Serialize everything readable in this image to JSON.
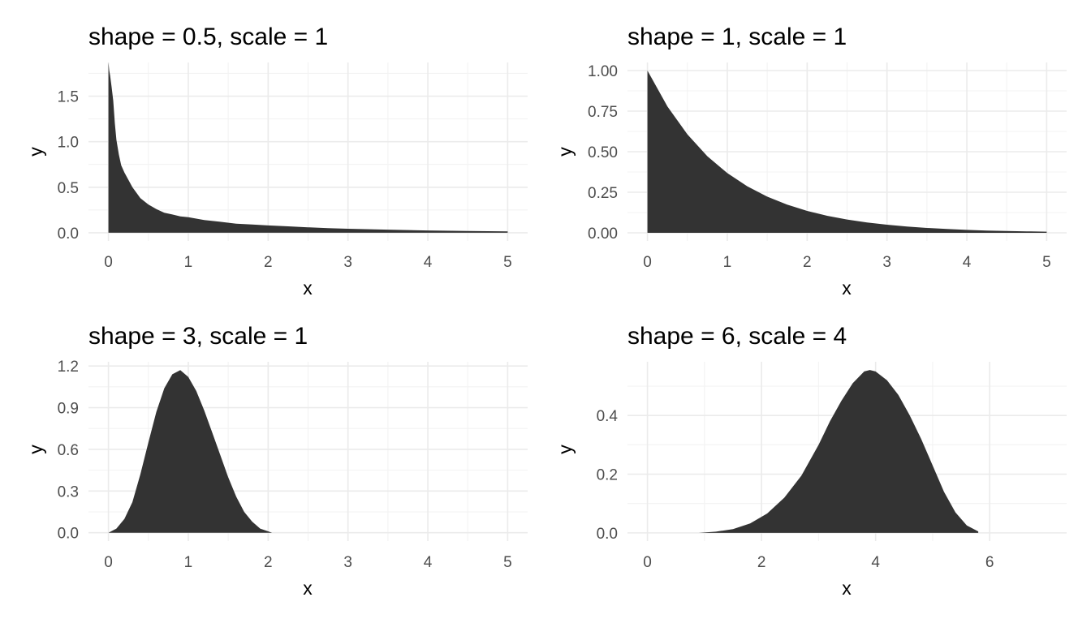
{
  "chart_data": [
    {
      "type": "area",
      "title": "shape = 0.5, scale = 1",
      "xlabel": "x",
      "ylabel": "y",
      "grid": true,
      "fill_color": "#333333",
      "xlim": [
        -0.25,
        5.25
      ],
      "ylim": [
        -0.09,
        1.87
      ],
      "xticks": [
        0,
        1,
        2,
        3,
        4,
        5
      ],
      "xtick_labels": [
        "0",
        "1",
        "2",
        "3",
        "4",
        "5"
      ],
      "yticks": [
        0.0,
        0.5,
        1.0,
        1.5
      ],
      "ytick_labels": [
        "0.0",
        "0.5",
        "1.0",
        "1.5"
      ],
      "x": [
        0,
        0.01,
        0.02,
        0.04,
        0.06,
        0.08,
        0.1,
        0.13,
        0.16,
        0.2,
        0.25,
        0.3,
        0.35,
        0.4,
        0.5,
        0.6,
        0.7,
        0.8,
        0.9,
        1.0,
        1.2,
        1.4,
        1.6,
        1.8,
        2.0,
        2.25,
        2.5,
        2.75,
        3.0,
        3.5,
        4.0,
        4.5,
        5.0
      ],
      "y": [
        1.87,
        1.78,
        1.73,
        1.6,
        1.45,
        1.2,
        1.02,
        0.86,
        0.74,
        0.66,
        0.58,
        0.5,
        0.44,
        0.38,
        0.31,
        0.26,
        0.22,
        0.2,
        0.18,
        0.17,
        0.14,
        0.12,
        0.1,
        0.09,
        0.08,
        0.07,
        0.06,
        0.05,
        0.044,
        0.034,
        0.025,
        0.019,
        0.014
      ]
    },
    {
      "type": "area",
      "title": "shape = 1, scale = 1",
      "xlabel": "x",
      "ylabel": "y",
      "grid": true,
      "fill_color": "#333333",
      "xlim": [
        -0.25,
        5.25
      ],
      "ylim": [
        -0.05,
        1.05
      ],
      "xticks": [
        0,
        1,
        2,
        3,
        4,
        5
      ],
      "xtick_labels": [
        "0",
        "1",
        "2",
        "3",
        "4",
        "5"
      ],
      "yticks": [
        0.0,
        0.25,
        0.5,
        0.75,
        1.0
      ],
      "ytick_labels": [
        "0.00",
        "0.25",
        "0.50",
        "0.75",
        "1.00"
      ],
      "x": [
        0,
        0.25,
        0.5,
        0.75,
        1.0,
        1.25,
        1.5,
        1.75,
        2.0,
        2.25,
        2.5,
        2.75,
        3.0,
        3.25,
        3.5,
        3.75,
        4.0,
        4.25,
        4.5,
        4.75,
        5.0
      ],
      "y": [
        1.0,
        0.779,
        0.607,
        0.472,
        0.368,
        0.287,
        0.223,
        0.174,
        0.135,
        0.105,
        0.082,
        0.064,
        0.05,
        0.039,
        0.03,
        0.024,
        0.018,
        0.014,
        0.011,
        0.009,
        0.007
      ]
    },
    {
      "type": "area",
      "title": "shape = 3, scale = 1",
      "xlabel": "x",
      "ylabel": "y",
      "grid": true,
      "fill_color": "#333333",
      "xlim": [
        -0.25,
        5.25
      ],
      "ylim": [
        -0.06,
        1.23
      ],
      "xticks": [
        0,
        1,
        2,
        3,
        4,
        5
      ],
      "xtick_labels": [
        "0",
        "1",
        "2",
        "3",
        "4",
        "5"
      ],
      "yticks": [
        0.0,
        0.3,
        0.6,
        0.9,
        1.2
      ],
      "ytick_labels": [
        "0.0",
        "0.3",
        "0.6",
        "0.9",
        "1.2"
      ],
      "x": [
        0,
        0.1,
        0.2,
        0.3,
        0.4,
        0.5,
        0.6,
        0.7,
        0.8,
        0.9,
        1.0,
        1.1,
        1.2,
        1.3,
        1.4,
        1.5,
        1.6,
        1.7,
        1.8,
        1.9,
        2.0,
        2.05
      ],
      "y": [
        0.0,
        0.03,
        0.1,
        0.22,
        0.42,
        0.65,
        0.87,
        1.04,
        1.14,
        1.17,
        1.12,
        1.02,
        0.88,
        0.72,
        0.56,
        0.4,
        0.26,
        0.15,
        0.08,
        0.03,
        0.01,
        0.0
      ]
    },
    {
      "type": "area",
      "title": "shape = 6, scale = 4",
      "xlabel": "x",
      "ylabel": "y",
      "grid": true,
      "fill_color": "#333333",
      "xlim": [
        -0.35,
        7.35
      ],
      "ylim": [
        -0.028,
        0.583
      ],
      "xticks": [
        0,
        2,
        4,
        6
      ],
      "xtick_labels": [
        "0",
        "2",
        "4",
        "6"
      ],
      "yticks": [
        0.0,
        0.2,
        0.4
      ],
      "ytick_labels": [
        "0.0",
        "0.2",
        "0.4"
      ],
      "x": [
        0.9,
        1.2,
        1.5,
        1.8,
        2.1,
        2.4,
        2.7,
        3.0,
        3.2,
        3.4,
        3.6,
        3.8,
        3.9,
        4.0,
        4.2,
        4.4,
        4.6,
        4.8,
        5.0,
        5.2,
        5.4,
        5.6,
        5.8
      ],
      "y": [
        0.0,
        0.004,
        0.013,
        0.032,
        0.066,
        0.12,
        0.195,
        0.3,
        0.38,
        0.45,
        0.51,
        0.55,
        0.555,
        0.55,
        0.52,
        0.47,
        0.4,
        0.32,
        0.23,
        0.14,
        0.07,
        0.025,
        0.005
      ]
    }
  ]
}
